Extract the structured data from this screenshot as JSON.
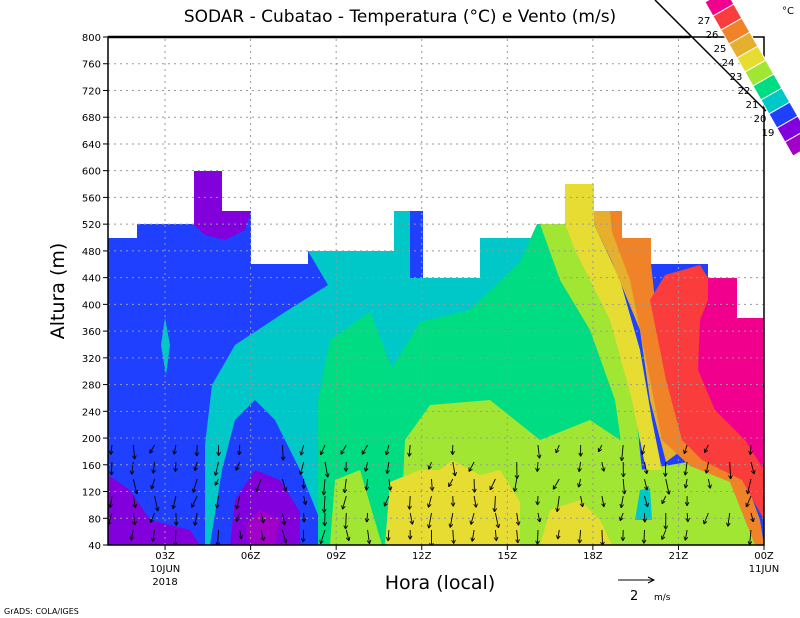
{
  "chart_data": {
    "type": "contour",
    "title": "SODAR - Cubatao - Temperatura (°C) e Vento (m/s)",
    "xlabel": "Hora (local)",
    "ylabel": "Altura (m)",
    "ylim": [
      40,
      800
    ],
    "y_ticks": [
      40,
      80,
      120,
      160,
      200,
      240,
      280,
      320,
      360,
      400,
      440,
      480,
      520,
      560,
      600,
      640,
      680,
      720,
      760,
      800
    ],
    "x_ticks": [
      {
        "label": "03Z",
        "sub1": "10JUN",
        "sub2": "2018",
        "hour": 3
      },
      {
        "label": "06Z",
        "hour": 6
      },
      {
        "label": "09Z",
        "hour": 9
      },
      {
        "label": "12Z",
        "hour": 12
      },
      {
        "label": "15Z",
        "hour": 15
      },
      {
        "label": "18Z",
        "hour": 18
      },
      {
        "label": "21Z",
        "hour": 21
      },
      {
        "label": "00Z",
        "sub1": "11JUN",
        "hour": 24
      }
    ],
    "xlim_hours": [
      1,
      24
    ],
    "grid": true,
    "legend": {
      "unit": "°C",
      "placement": "top-right",
      "levels": [
        "27",
        "26",
        "25",
        "24",
        "23",
        "22",
        "21",
        "20",
        "19"
      ],
      "colors": [
        "#f0008c",
        "#fa3c3c",
        "#f08228",
        "#e6af2d",
        "#e6dc32",
        "#a0e632",
        "#00dc82",
        "#00c8c8",
        "#2040ff",
        "#8200dc",
        "#a000c8"
      ]
    },
    "vector_reference": {
      "value": "2",
      "unit": "m/s"
    }
  },
  "footer": {
    "credit": "GrADS: COLA/IGES"
  }
}
